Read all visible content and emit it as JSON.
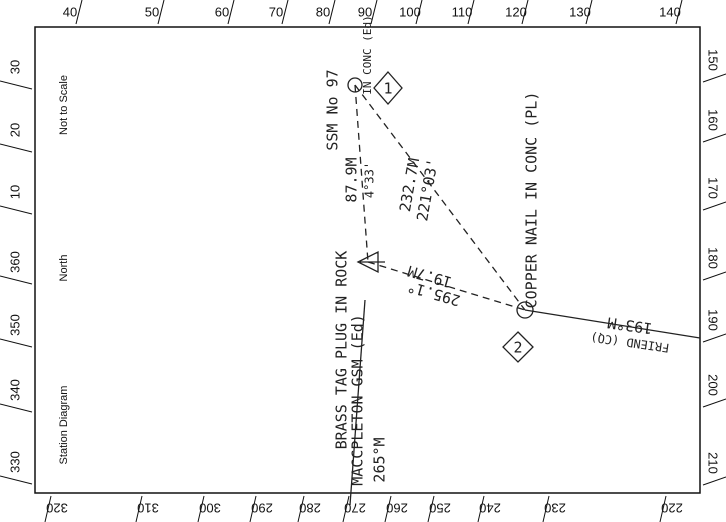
{
  "frame": {
    "top": [
      40,
      50,
      60,
      70,
      80,
      90,
      100,
      110,
      120,
      130,
      140
    ],
    "right": [
      150,
      160,
      170,
      180,
      190,
      200,
      210
    ],
    "bottom": [
      320,
      310,
      300,
      290,
      280,
      270,
      260,
      250,
      240,
      230,
      220
    ],
    "left": [
      30,
      20,
      10,
      360,
      350,
      340,
      330
    ]
  },
  "printed": {
    "scale": "Not to Scale",
    "north": "North",
    "title": "Station Diagram"
  },
  "stations": [
    {
      "number": "1",
      "name": "SSM No 97",
      "note": "IN CONC (Ed)"
    },
    {
      "number": "2",
      "name": "COPPER NAIL IN CONC (PL)"
    }
  ],
  "reference": {
    "name": "BRASS TAG PLUG IN ROCK",
    "mark": "MACCPLETON GSM (Ed)",
    "bearing": "265°M"
  },
  "legs": [
    {
      "distance": "87.9M",
      "bearing": "4°33'"
    },
    {
      "distance": "232.7M",
      "bearing": "221°03'"
    },
    {
      "distance": "19.7M",
      "bearing": "295.1°"
    },
    {
      "distance": "193°M",
      "bearing": "FRIEND (CQ)"
    }
  ]
}
